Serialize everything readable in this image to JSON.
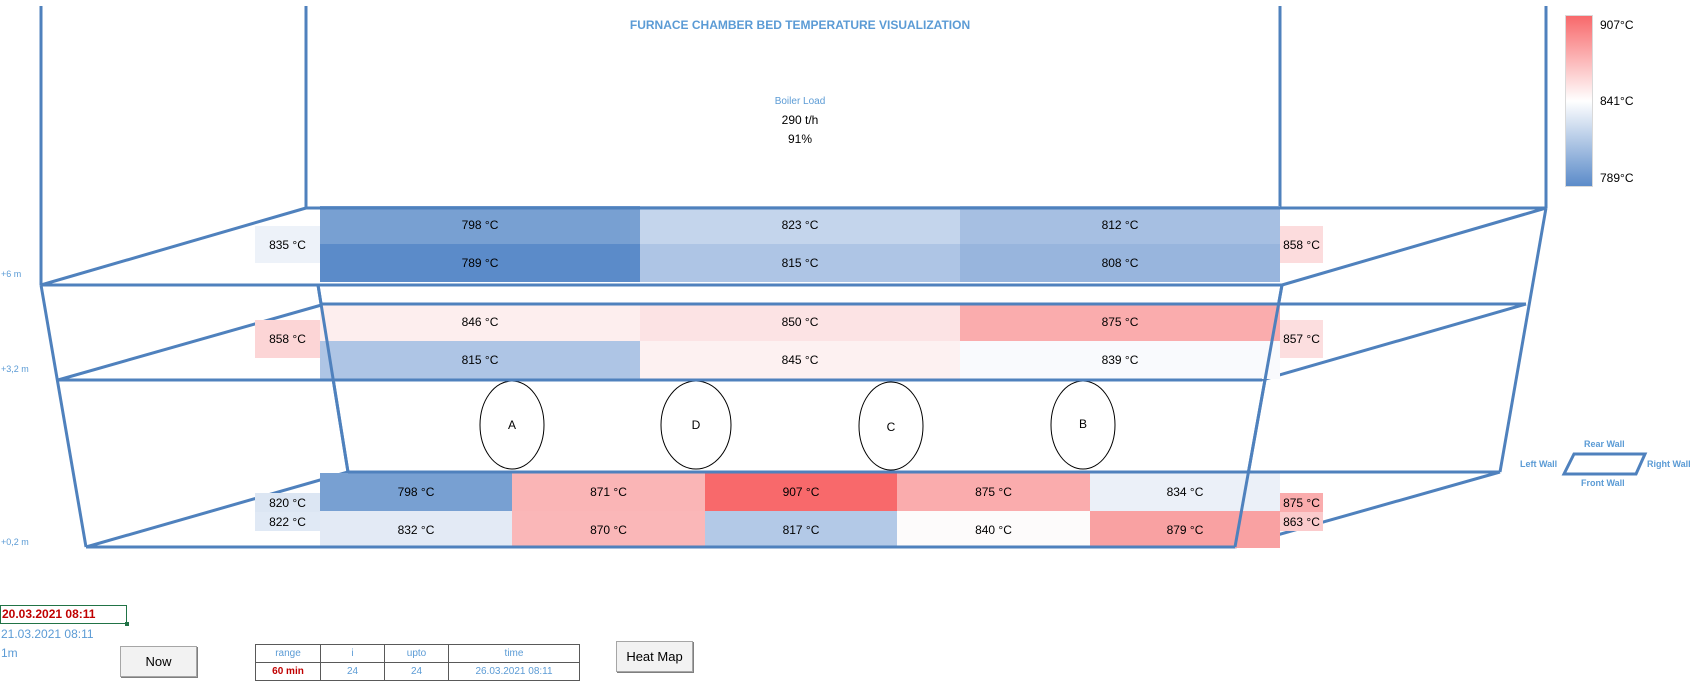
{
  "title": "FURNACE CHAMBER BED TEMPERATURE VISUALIZATION",
  "legend": {
    "max_label": "907°C",
    "mid_label": "841°C",
    "min_label": "789°C",
    "colors": {
      "low": "#5B8BC9",
      "mid": "#FFFFFF",
      "high": "#F8696B"
    }
  },
  "boiler_load": {
    "title": "Boiler Load",
    "flow": "290 t/h",
    "percent": "91%"
  },
  "levels": {
    "upper": "+6 m",
    "middle": "+3,2 m",
    "lower": "+0,2 m"
  },
  "upper_zone": {
    "left_wall": "835 °C",
    "right_wall": "858 °C",
    "rear_row": [
      "798 °C",
      "823 °C",
      "812 °C"
    ],
    "front_row": [
      "789 °C",
      "815 °C",
      "808 °C"
    ]
  },
  "middle_zone": {
    "left_wall": "858 °C",
    "right_wall": "857 °C",
    "rear_row": [
      "846 °C",
      "850 °C",
      "875 °C"
    ],
    "front_row": [
      "815 °C",
      "845 °C",
      "839 °C"
    ]
  },
  "lower_zone": {
    "left_wall_top": "820 °C",
    "left_wall_bottom": "822 °C",
    "right_wall_top": "875 °C",
    "right_wall_bottom": "863 °C",
    "rear_row": [
      "798 °C",
      "871 °C",
      "907 °C",
      "875 °C",
      "834 °C"
    ],
    "front_row": [
      "832 °C",
      "870 °C",
      "817 °C",
      "840 °C",
      "879 °C"
    ]
  },
  "burners": [
    "A",
    "D",
    "C",
    "B"
  ],
  "orientation": {
    "rear": "Rear Wall",
    "front": "Front Wall",
    "left": "Left Wall",
    "right": "Right Wall"
  },
  "controls": {
    "from_date": "20.03.2021 08:11",
    "to_date": "21.03.2021 08:11",
    "interval": "1m",
    "now_button": "Now",
    "heatmap_button": "Heat Map",
    "table_headers": [
      "range",
      "i",
      "upto",
      "time"
    ],
    "table_values": [
      "60 min",
      "24",
      "24",
      "26.03.2021 08:11"
    ]
  }
}
